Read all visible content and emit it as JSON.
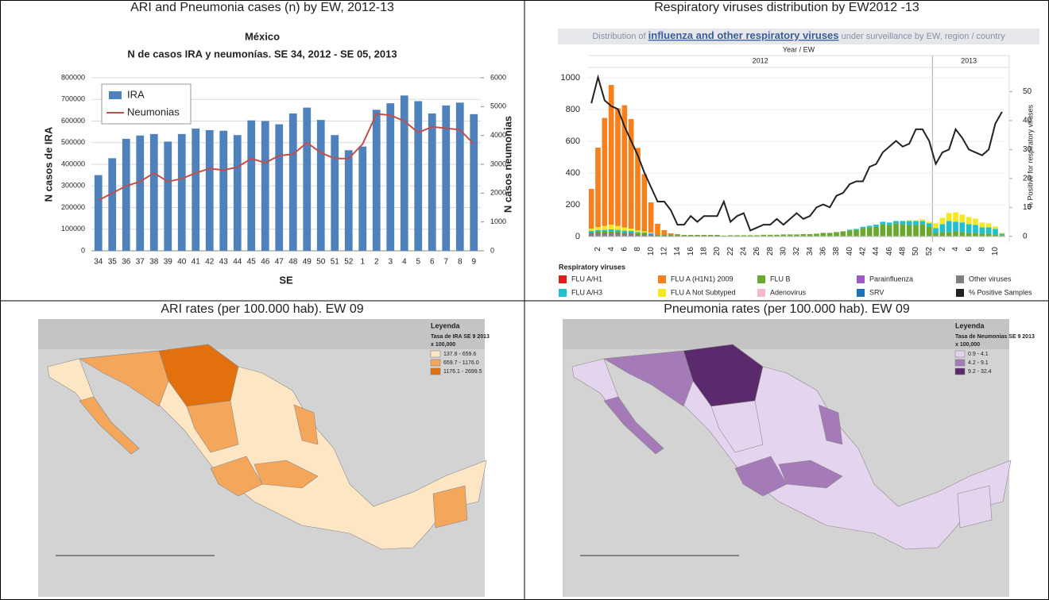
{
  "chart_data": [
    {
      "type": "bar",
      "panel_title": "ARI and Pneumonia cases (n) by EW, 2012-13",
      "title": "México",
      "subtitle": "N de casos IRA y neumonías. SE 34, 2012 - SE 05, 2013",
      "x_label": "SE",
      "y_label": "N casos de IRA",
      "y2_label": "N casos neumonias",
      "categories": [
        "34",
        "35",
        "36",
        "37",
        "38",
        "39",
        "40",
        "41",
        "42",
        "43",
        "44",
        "45",
        "46",
        "47",
        "48",
        "49",
        "50",
        "51",
        "52",
        "1",
        "2",
        "3",
        "4",
        "5",
        "6",
        "7",
        "8",
        "9"
      ],
      "series": [
        {
          "name": "IRA",
          "color": "#4f81bd",
          "type": "bar",
          "values": [
            350000,
            428000,
            518000,
            533000,
            540000,
            505000,
            540000,
            565000,
            558000,
            555000,
            535000,
            603000,
            600000,
            585000,
            635000,
            662000,
            605000,
            535000,
            465000,
            482000,
            652000,
            682000,
            718000,
            692000,
            635000,
            672000,
            685000,
            632000
          ]
        },
        {
          "name": "Neumonias",
          "color": "#c0504d",
          "type": "line",
          "axis": "y2",
          "values": [
            1750,
            2000,
            2250,
            2400,
            2700,
            2400,
            2500,
            2700,
            2850,
            2800,
            2900,
            3200,
            3050,
            3300,
            3350,
            3750,
            3400,
            3200,
            3200,
            3700,
            4750,
            4700,
            4500,
            4100,
            4300,
            4250,
            4200,
            3700
          ]
        }
      ],
      "ylim": [
        0,
        800000
      ],
      "yticks": [
        0,
        100000,
        200000,
        300000,
        400000,
        500000,
        600000,
        700000,
        800000
      ],
      "y2lim": [
        0,
        6000
      ],
      "y2ticks": [
        0,
        1000,
        2000,
        3000,
        4000,
        5000,
        6000
      ],
      "grid": true,
      "legend": "top-left"
    },
    {
      "type": "bar",
      "panel_title": "Respiratory viruses distribution by EW2012 -13",
      "banner": [
        "Distribution of ",
        "influenza and other respiratory viruses",
        " under surveillance by EW, region / country"
      ],
      "x_label": "Year / EW",
      "year_labels": [
        "2012",
        "2013"
      ],
      "y2_label": "% Positive for respiratory viruses",
      "legend_title": "Respiratory viruses",
      "categories": [
        null,
        2,
        null,
        4,
        null,
        6,
        null,
        8,
        null,
        10,
        null,
        12,
        null,
        14,
        null,
        16,
        null,
        18,
        null,
        20,
        null,
        22,
        null,
        24,
        null,
        26,
        null,
        28,
        null,
        30,
        null,
        32,
        null,
        34,
        null,
        36,
        null,
        38,
        null,
        40,
        null,
        42,
        null,
        44,
        null,
        46,
        null,
        48,
        null,
        50,
        null,
        52,
        null,
        2,
        null,
        4,
        null,
        6,
        null,
        8,
        null,
        10,
        null
      ],
      "series": [
        {
          "name": "FLU A/H1",
          "color": "#e31a1c",
          "values": [
            0,
            0,
            0,
            0,
            0,
            0,
            0,
            0,
            0,
            0,
            0,
            0,
            0,
            0,
            0,
            0,
            0,
            0,
            0,
            0,
            0,
            0,
            0,
            0,
            0,
            0,
            0,
            0,
            0,
            0,
            0,
            0,
            0,
            0,
            0,
            0,
            0,
            0,
            0,
            0,
            0,
            0,
            0,
            0,
            0,
            0,
            0,
            0,
            0,
            0,
            0,
            0,
            0,
            0,
            0,
            0,
            0,
            0,
            0,
            0,
            0,
            0,
            0
          ]
        },
        {
          "name": "FLU A (H1N1) 2009",
          "color": "#f7801e",
          "values": [
            250,
            500,
            680,
            880,
            740,
            770,
            690,
            520,
            360,
            190,
            70,
            30,
            10,
            5,
            0,
            0,
            0,
            0,
            0,
            0,
            0,
            0,
            0,
            0,
            0,
            0,
            0,
            0,
            0,
            0,
            0,
            0,
            0,
            0,
            0,
            0,
            0,
            0,
            0,
            0,
            0,
            0,
            0,
            0,
            0,
            0,
            0,
            0,
            0,
            0,
            0,
            0,
            0,
            0,
            0,
            0,
            0,
            0,
            0,
            0,
            0,
            0,
            0
          ]
        },
        {
          "name": "FLU B",
          "color": "#6aa830",
          "values": [
            5,
            5,
            5,
            5,
            5,
            5,
            5,
            5,
            5,
            5,
            5,
            5,
            5,
            5,
            5,
            5,
            5,
            5,
            5,
            5,
            3,
            5,
            5,
            5,
            5,
            5,
            8,
            8,
            8,
            10,
            10,
            10,
            12,
            12,
            15,
            20,
            20,
            25,
            30,
            35,
            40,
            50,
            55,
            60,
            75,
            70,
            80,
            75,
            70,
            70,
            75,
            60,
            20,
            25,
            25,
            30,
            25,
            20,
            20,
            15,
            15,
            10,
            5
          ]
        },
        {
          "name": "Parainfluenza",
          "color": "#9b59c6",
          "values": [
            0,
            0,
            0,
            0,
            0,
            0,
            0,
            0,
            0,
            0,
            0,
            0,
            0,
            0,
            0,
            0,
            0,
            0,
            0,
            0,
            0,
            0,
            0,
            0,
            0,
            0,
            0,
            0,
            0,
            0,
            0,
            0,
            0,
            0,
            0,
            0,
            0,
            0,
            0,
            0,
            0,
            0,
            0,
            0,
            0,
            0,
            0,
            0,
            0,
            0,
            0,
            0,
            0,
            0,
            0,
            0,
            0,
            0,
            0,
            0,
            0,
            0,
            0
          ]
        },
        {
          "name": "Other viruses",
          "color": "#808080",
          "values": [
            20,
            25,
            25,
            25,
            25,
            20,
            20,
            15,
            15,
            10,
            5,
            5,
            5,
            5,
            5,
            5,
            5,
            5,
            5,
            5,
            3,
            3,
            3,
            3,
            3,
            3,
            3,
            3,
            3,
            3,
            3,
            3,
            3,
            3,
            3,
            3,
            3,
            3,
            3,
            3,
            3,
            3,
            3,
            3,
            3,
            3,
            3,
            3,
            3,
            3,
            3,
            3,
            3,
            3,
            3,
            3,
            3,
            3,
            3,
            3,
            3,
            3,
            3
          ]
        },
        {
          "name": "FLU A/H3",
          "color": "#1fc0d0",
          "values": [
            10,
            10,
            12,
            15,
            12,
            12,
            10,
            8,
            5,
            5,
            0,
            0,
            0,
            0,
            0,
            0,
            0,
            0,
            0,
            0,
            0,
            0,
            0,
            0,
            0,
            0,
            0,
            0,
            0,
            0,
            0,
            0,
            0,
            0,
            0,
            0,
            0,
            0,
            0,
            5,
            5,
            8,
            10,
            12,
            15,
            15,
            15,
            20,
            25,
            25,
            20,
            20,
            30,
            50,
            70,
            60,
            60,
            55,
            50,
            40,
            40,
            35,
            10
          ]
        },
        {
          "name": "FLU A Not Subtyped",
          "color": "#f5e822",
          "values": [
            15,
            20,
            25,
            30,
            25,
            20,
            15,
            10,
            8,
            5,
            0,
            0,
            0,
            0,
            0,
            0,
            0,
            0,
            0,
            0,
            0,
            0,
            0,
            0,
            0,
            0,
            0,
            0,
            0,
            0,
            0,
            0,
            0,
            0,
            0,
            0,
            0,
            0,
            0,
            0,
            0,
            0,
            0,
            0,
            0,
            0,
            0,
            0,
            5,
            5,
            10,
            10,
            30,
            40,
            50,
            60,
            50,
            45,
            40,
            30,
            25,
            15,
            5
          ]
        },
        {
          "name": "Adenovirus",
          "color": "#f7b6d2",
          "values": [
            0,
            0,
            0,
            0,
            0,
            0,
            0,
            0,
            0,
            0,
            0,
            0,
            0,
            0,
            0,
            0,
            0,
            0,
            0,
            0,
            0,
            0,
            0,
            0,
            0,
            0,
            0,
            0,
            0,
            0,
            0,
            0,
            0,
            0,
            0,
            0,
            0,
            0,
            0,
            0,
            0,
            0,
            0,
            0,
            0,
            0,
            0,
            0,
            0,
            0,
            0,
            0,
            0,
            0,
            0,
            0,
            0,
            0,
            0,
            0,
            0,
            0,
            0
          ]
        },
        {
          "name": "SRV",
          "color": "#1f6fb4",
          "values": [
            0,
            0,
            0,
            0,
            0,
            0,
            0,
            0,
            0,
            0,
            0,
            0,
            0,
            0,
            0,
            0,
            0,
            0,
            0,
            0,
            0,
            0,
            0,
            0,
            0,
            0,
            0,
            0,
            0,
            0,
            0,
            0,
            0,
            0,
            0,
            0,
            0,
            0,
            0,
            0,
            0,
            0,
            0,
            0,
            0,
            0,
            0,
            0,
            0,
            0,
            0,
            0,
            0,
            0,
            0,
            0,
            0,
            0,
            0,
            0,
            0,
            0,
            0
          ]
        },
        {
          "name": "% Positive Samples",
          "color": "#222222",
          "type": "line",
          "axis": "y2",
          "values": [
            46,
            55,
            47,
            45,
            44,
            38,
            33,
            28,
            22,
            17,
            12,
            12,
            9,
            4,
            4,
            7,
            5,
            7,
            7,
            7,
            12,
            5,
            7,
            8,
            2,
            3,
            4,
            4,
            6,
            4,
            6,
            8,
            6,
            7,
            10,
            11,
            10,
            14,
            15,
            18,
            19,
            19,
            24,
            25,
            29,
            31,
            33,
            31,
            32,
            37,
            37,
            33,
            25,
            29,
            30,
            37,
            34,
            30,
            29,
            28,
            30,
            39,
            43
          ]
        }
      ],
      "ylim": [
        -35,
        1040
      ],
      "yticks": [
        0,
        200,
        400,
        600,
        800,
        1000
      ],
      "y2lim": [
        -2,
        57
      ],
      "y2ticks": [
        0,
        10,
        20,
        30,
        40,
        50
      ],
      "grid": true
    }
  ],
  "maps": [
    {
      "panel_title": "ARI rates (per 100.000 hab). EW 09",
      "legend_title": "Leyenda",
      "legend_subtitle": "Tasa de IRA SE 9 2013",
      "legend_unit": "x 100,000",
      "classes": [
        {
          "label": "137.8 - 659.6",
          "color": "#fde6c4"
        },
        {
          "label": "659.7 - 1176.0",
          "color": "#f4a65a"
        },
        {
          "label": "1176.1 - 2699.5",
          "color": "#e2700c"
        }
      ]
    },
    {
      "panel_title": "Pneumonia rates (per 100.000 hab).  EW 09",
      "legend_title": "Leyenda",
      "legend_subtitle": "Tasa de Neumonias SE 9 2013",
      "legend_unit": "x 100,000",
      "classes": [
        {
          "label": "0.9 - 4.1",
          "color": "#e5d4ee"
        },
        {
          "label": "4.2 - 9.1",
          "color": "#a57ab8"
        },
        {
          "label": "9.2 - 32.4",
          "color": "#5a2a6c"
        }
      ]
    }
  ]
}
